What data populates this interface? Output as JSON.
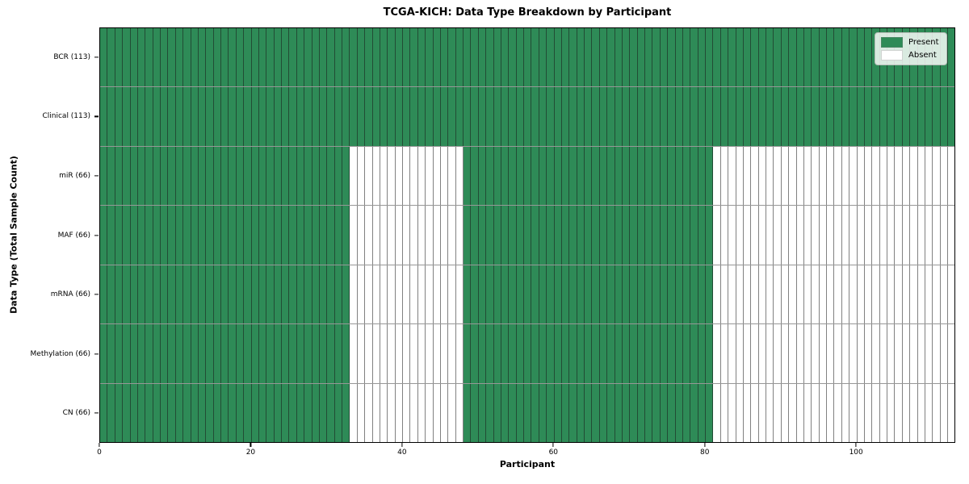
{
  "chart_data": {
    "type": "heatmap",
    "title": "TCGA-KICH: Data Type Breakdown by Participant",
    "xlabel": "Participant",
    "ylabel": "Data Type (Total Sample Count)",
    "x_range": [
      0,
      113
    ],
    "x_ticks": [
      0,
      20,
      40,
      60,
      80,
      100
    ],
    "n_participants": 113,
    "grid": false,
    "legend_position": "upper right",
    "legend_items": [
      {
        "label": "Present",
        "state": "present",
        "color": "#2e8b57"
      },
      {
        "label": "Absent",
        "state": "absent",
        "color": "#ffffff"
      }
    ],
    "colors": {
      "present": "#2e8b57",
      "absent": "#ffffff"
    },
    "rows": [
      {
        "label": "BCR (113)",
        "data_type": "BCR",
        "total_samples": 113,
        "present_ranges": [
          [
            0,
            113
          ]
        ]
      },
      {
        "label": "Clinical (113)",
        "data_type": "Clinical",
        "total_samples": 113,
        "present_ranges": [
          [
            0,
            113
          ]
        ]
      },
      {
        "label": "miR (66)",
        "data_type": "miR",
        "total_samples": 66,
        "present_ranges": [
          [
            0,
            33
          ],
          [
            48,
            81
          ]
        ]
      },
      {
        "label": "MAF (66)",
        "data_type": "MAF",
        "total_samples": 66,
        "present_ranges": [
          [
            0,
            33
          ],
          [
            48,
            81
          ]
        ]
      },
      {
        "label": "mRNA (66)",
        "data_type": "mRNA",
        "total_samples": 66,
        "present_ranges": [
          [
            0,
            33
          ],
          [
            48,
            81
          ]
        ]
      },
      {
        "label": "Methylation (66)",
        "data_type": "Methylation",
        "total_samples": 66,
        "present_ranges": [
          [
            0,
            33
          ],
          [
            48,
            81
          ]
        ]
      },
      {
        "label": "CN (66)",
        "data_type": "CN",
        "total_samples": 66,
        "present_ranges": [
          [
            0,
            33
          ],
          [
            48,
            81
          ]
        ]
      }
    ]
  }
}
